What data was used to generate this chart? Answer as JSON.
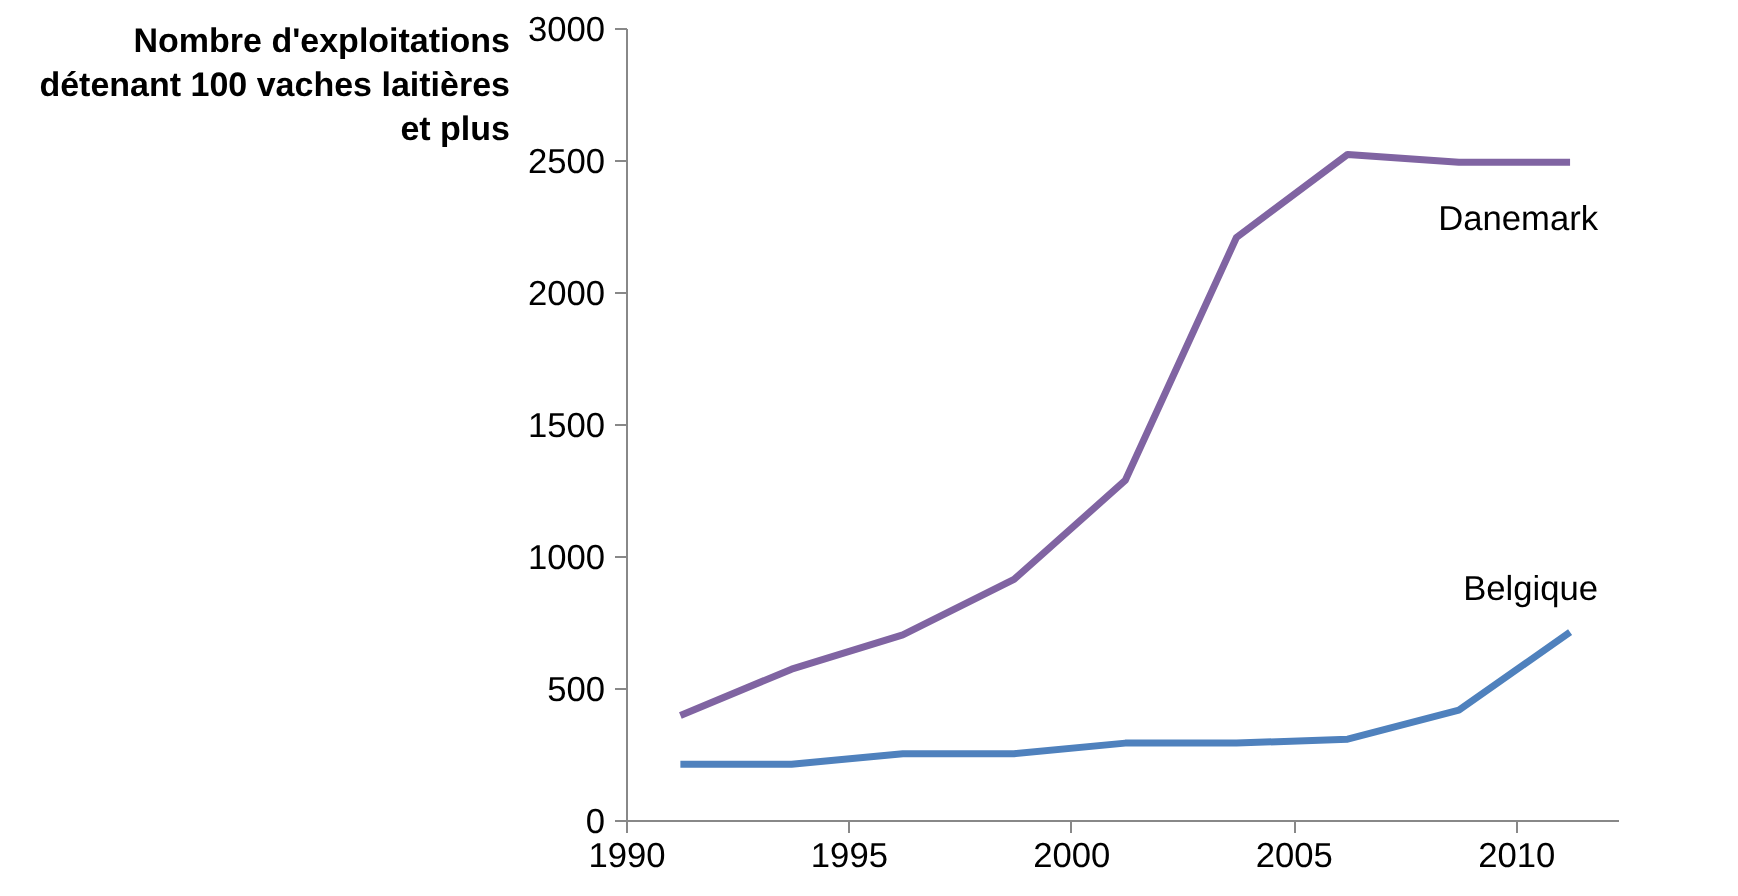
{
  "chart_data": {
    "type": "line",
    "ylabel": "Nombre d'exploitations détenant 100 vaches laitières et plus",
    "x": [
      1991.2,
      1993.7,
      1996.2,
      1998.7,
      2001.2,
      2003.7,
      2006.2,
      2008.7,
      2011.2
    ],
    "series": [
      {
        "name": "Danemark",
        "color": "#8064a2",
        "values": [
          400,
          575,
          705,
          915,
          1290,
          2210,
          2525,
          2495,
          2495
        ]
      },
      {
        "name": "Belgique",
        "color": "#4f81bd",
        "values": [
          215,
          215,
          255,
          255,
          295,
          295,
          310,
          420,
          715
        ]
      }
    ],
    "xlim": [
      1990,
      2012.3
    ],
    "xticks": [
      1990,
      1995,
      2000,
      2005,
      2010
    ],
    "ylim": [
      0,
      3000
    ],
    "yticks": [
      0,
      500,
      1000,
      1500,
      2000,
      2500,
      3000
    ],
    "grid": false,
    "legend": false,
    "marker": "none",
    "line_style": "solid"
  }
}
